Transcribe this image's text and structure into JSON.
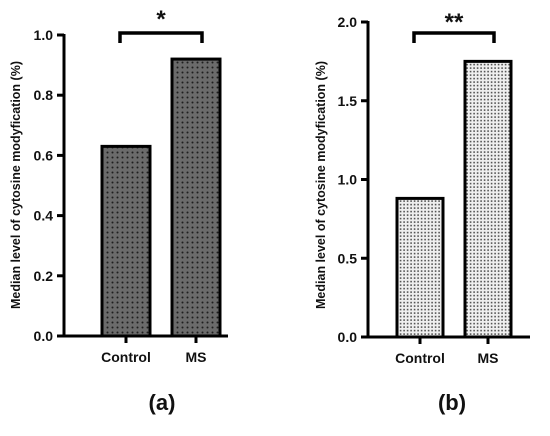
{
  "chart_data": [
    {
      "type": "bar",
      "panel_label": "(a)",
      "title": "",
      "xlabel": "",
      "ylabel": "Median level of cytosine modyfication (%)",
      "categories": [
        "Control",
        "MS"
      ],
      "values": [
        0.63,
        0.92
      ],
      "ylim": [
        0,
        1.0
      ],
      "yticks": [
        0.0,
        0.2,
        0.4,
        0.6,
        0.8,
        1.0
      ],
      "ytick_labels": [
        "0.0",
        "0.2",
        "0.4",
        "0.6",
        "0.8",
        "1.0"
      ],
      "significance": "*",
      "fill_pattern": "dark-dotted",
      "bar_fill_color": "#6b6b6b",
      "grid": false,
      "legend": "none"
    },
    {
      "type": "bar",
      "panel_label": "(b)",
      "title": "",
      "xlabel": "",
      "ylabel": "Median level of cytosine modyfication (%)",
      "categories": [
        "Control",
        "MS"
      ],
      "values": [
        0.88,
        1.75
      ],
      "ylim": [
        0,
        2.0
      ],
      "yticks": [
        0.0,
        0.5,
        1.0,
        1.5,
        2.0
      ],
      "ytick_labels": [
        "0.0",
        "0.5",
        "1.0",
        "1.5",
        "2.0"
      ],
      "significance": "**",
      "fill_pattern": "light-dotted",
      "bar_fill_color": "#d9d9d9",
      "grid": false,
      "legend": "none"
    }
  ]
}
